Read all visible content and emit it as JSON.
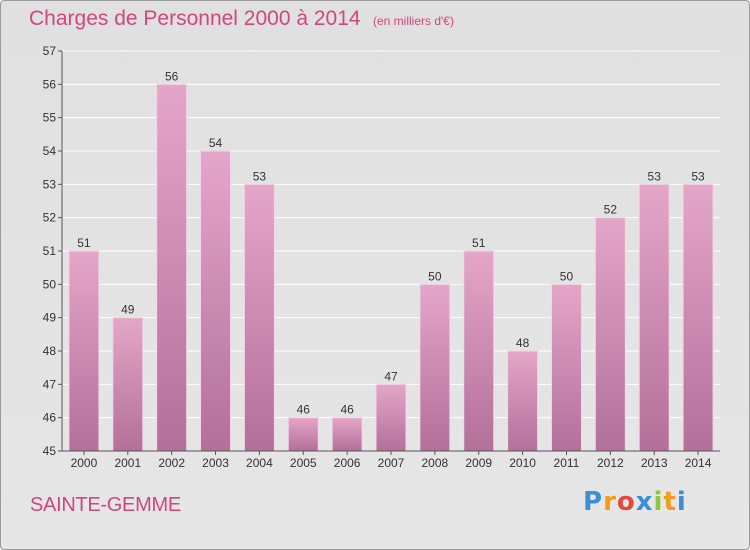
{
  "header": {
    "title": "Charges de Personnel 2000 à 2014",
    "subtitle": "(en milliers d'€)"
  },
  "footer": {
    "commune": "SAINTE-GEMME",
    "logo_text": "Proxiti",
    "logo_letters": [
      "P",
      "r",
      "o",
      "x",
      "i",
      "t",
      "i"
    ],
    "logo_colors": [
      "#3a8fd6",
      "#f29b1d",
      "#e8483a",
      "#3a8fd6",
      "#8cc63f",
      "#f29b1d",
      "#3a8fd6"
    ]
  },
  "colors": {
    "accent": "#d1477a",
    "bar_top": "#e4a6c8",
    "bar_bottom": "#b3709a",
    "axis": "#555555",
    "grid": "#ffffff"
  },
  "chart_data": {
    "type": "bar",
    "title": "Charges de Personnel 2000 à 2014",
    "subtitle": "(en milliers d'€)",
    "xlabel": "",
    "ylabel": "",
    "categories": [
      "2000",
      "2001",
      "2002",
      "2003",
      "2004",
      "2005",
      "2006",
      "2007",
      "2008",
      "2009",
      "2010",
      "2011",
      "2012",
      "2013",
      "2014"
    ],
    "values": [
      51,
      49,
      56,
      54,
      53,
      46,
      46,
      47,
      50,
      51,
      48,
      50,
      52,
      53,
      53
    ],
    "ylim": [
      45,
      57
    ],
    "yticks": [
      45,
      46,
      47,
      48,
      49,
      50,
      51,
      52,
      53,
      54,
      55,
      56,
      57
    ],
    "grid": true,
    "legend": "none",
    "data_labels": true
  }
}
